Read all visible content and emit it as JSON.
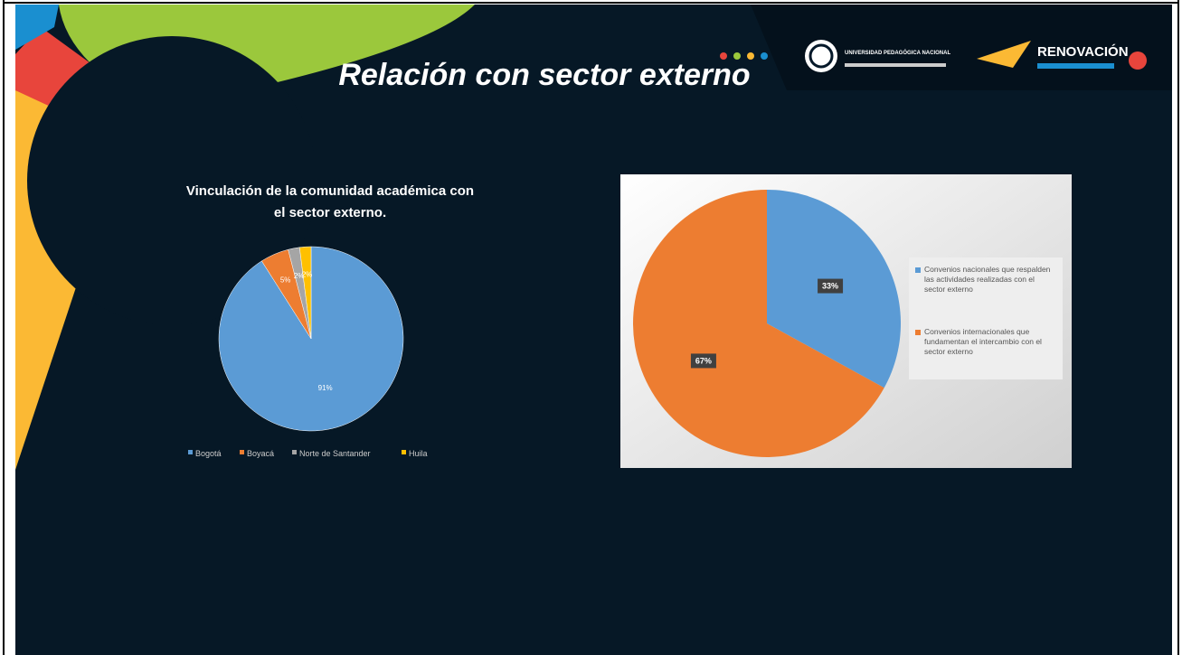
{
  "slide_title": "Relación con sector externo",
  "logos": [
    "UNIVERSIDAD PEDAGÓGICA NACIONAL",
    "RENOVACIÓN"
  ],
  "chart_data": [
    {
      "type": "pie",
      "title": "Vinculación de la comunidad académica con el sector externo.",
      "categories": [
        "Bogotá",
        "Boyacá",
        "Norte de Santander",
        "Huila"
      ],
      "values": [
        91,
        5,
        2,
        2
      ],
      "value_labels": [
        "91%",
        "5%",
        "2%",
        "2%"
      ],
      "colors": [
        "#5b9bd5",
        "#ed7d31",
        "#a5a5a5",
        "#ffc000"
      ],
      "legend": "bottom"
    },
    {
      "type": "pie",
      "categories": [
        "Convenios nacionales que respalden las actividades realizadas con el sector externo",
        "Convenios internacionales que fundamentan el intercambio con el sector externo"
      ],
      "values": [
        33,
        67
      ],
      "value_labels": [
        "33%",
        "67%"
      ],
      "colors": [
        "#5b9bd5",
        "#ed7d31"
      ],
      "legend": "right"
    }
  ]
}
